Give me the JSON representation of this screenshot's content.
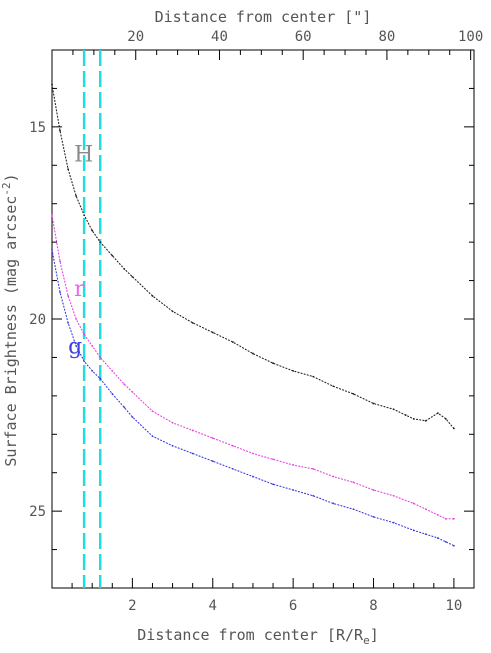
{
  "chart_data": {
    "type": "scatter",
    "xlabel_bottom": "Distance from center [R/R",
    "xlabel_bottom_sub": "e",
    "xlabel_bottom_end": "]",
    "xlabel_top": "Distance from center [\"]",
    "ylabel": "Surface Brightness (mag arcsec",
    "ylabel_sup": "-2",
    "ylabel_end": ")",
    "xlim": [
      0,
      10.5
    ],
    "ylim": [
      27,
      13
    ],
    "y_inverted": true,
    "x_ticks_bottom": [
      2,
      4,
      6,
      8,
      10
    ],
    "x_ticks_top": [
      20,
      40,
      60,
      80,
      100
    ],
    "top_axis_scale": 9.6,
    "y_ticks": [
      15,
      20,
      25
    ],
    "vertical_markers": [
      {
        "x": 0.8,
        "color": "#22dddd",
        "style": "dashed"
      },
      {
        "x": 1.2,
        "color": "#22dddd",
        "style": "dashed"
      }
    ],
    "series": [
      {
        "name": "H",
        "color": "#222222",
        "label_color": "#8a8a8a",
        "x": [
          0.0,
          0.2,
          0.4,
          0.6,
          0.8,
          1.0,
          1.2,
          1.5,
          1.8,
          2.0,
          2.5,
          3.0,
          3.5,
          4.0,
          4.5,
          5.0,
          5.5,
          6.0,
          6.5,
          7.0,
          7.5,
          8.0,
          8.5,
          8.8,
          9.0,
          9.3,
          9.6,
          9.8,
          10.0
        ],
        "y": [
          13.9,
          15.1,
          16.1,
          16.8,
          17.3,
          17.7,
          18.0,
          18.35,
          18.7,
          18.9,
          19.4,
          19.8,
          20.1,
          20.35,
          20.6,
          20.9,
          21.15,
          21.35,
          21.5,
          21.75,
          21.95,
          22.2,
          22.35,
          22.5,
          22.6,
          22.65,
          22.45,
          22.6,
          22.85
        ]
      },
      {
        "name": "r",
        "color": "#e840e8",
        "label_color": "#ee66ee",
        "x": [
          0.0,
          0.2,
          0.4,
          0.6,
          0.8,
          1.0,
          1.2,
          1.5,
          1.8,
          2.0,
          2.5,
          3.0,
          3.5,
          4.0,
          4.5,
          5.0,
          5.5,
          6.0,
          6.5,
          7.0,
          7.5,
          8.0,
          8.5,
          9.0,
          9.3,
          9.6,
          9.8,
          10.0
        ],
        "y": [
          17.3,
          18.5,
          19.4,
          20.0,
          20.4,
          20.7,
          21.0,
          21.35,
          21.7,
          21.9,
          22.4,
          22.7,
          22.9,
          23.1,
          23.3,
          23.5,
          23.65,
          23.8,
          23.9,
          24.1,
          24.25,
          24.45,
          24.6,
          24.8,
          24.95,
          25.1,
          25.2,
          25.2
        ]
      },
      {
        "name": "g",
        "color": "#3a3ae0",
        "label_color": "#4040e0",
        "x": [
          0.0,
          0.2,
          0.4,
          0.6,
          0.8,
          1.0,
          1.2,
          1.5,
          1.8,
          2.0,
          2.5,
          3.0,
          3.5,
          4.0,
          4.5,
          5.0,
          5.5,
          6.0,
          6.5,
          7.0,
          7.5,
          8.0,
          8.5,
          9.0,
          9.3,
          9.6,
          9.8,
          10.0
        ],
        "y": [
          18.2,
          19.3,
          20.1,
          20.7,
          21.1,
          21.35,
          21.55,
          21.95,
          22.3,
          22.55,
          23.05,
          23.3,
          23.5,
          23.7,
          23.9,
          24.1,
          24.3,
          24.45,
          24.6,
          24.8,
          24.95,
          25.15,
          25.3,
          25.5,
          25.6,
          25.7,
          25.8,
          25.9
        ]
      }
    ]
  }
}
